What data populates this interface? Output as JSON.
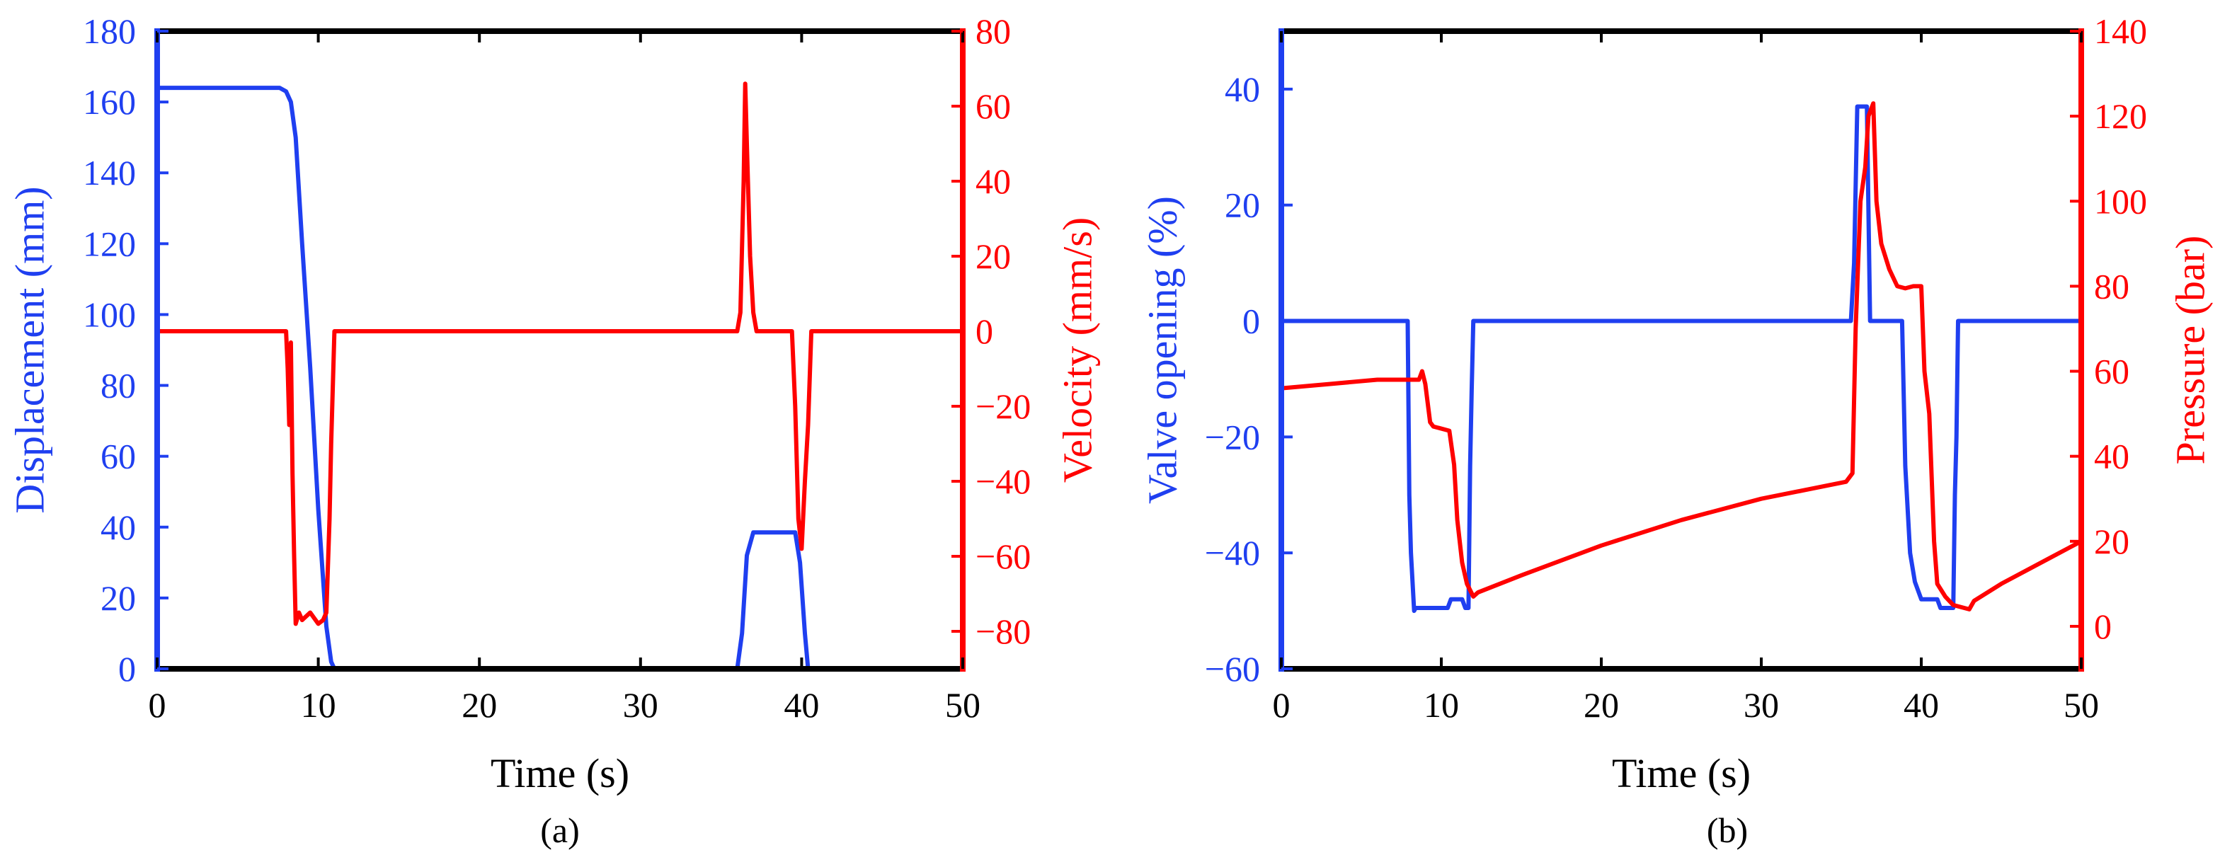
{
  "colors": {
    "left_axis": "#1f3ff0",
    "right_axis": "#ff0000",
    "frame": "#000000"
  },
  "chart_data": [
    {
      "type": "line",
      "panel": "a",
      "caption": "(a)",
      "xlabel": "Time (s)",
      "xlim": [
        0,
        50
      ],
      "xticks": [
        "0",
        "10",
        "20",
        "30",
        "40",
        "50"
      ],
      "left_axis": {
        "label": "Displacement (mm)",
        "ylim": [
          0,
          180
        ],
        "ticks": [
          "0",
          "20",
          "40",
          "60",
          "80",
          "100",
          "120",
          "140",
          "160",
          "180"
        ]
      },
      "right_axis": {
        "label": "Velocity (mm/s)",
        "ylim": [
          -90,
          80
        ],
        "ticks": [
          "−80",
          "−60",
          "−40",
          "−20",
          "0",
          "20",
          "40",
          "60",
          "80"
        ]
      },
      "series": [
        {
          "name": "Displacement",
          "axis": "left",
          "color": "#1f3ff0",
          "x": [
            0,
            7.6,
            8.0,
            8.3,
            8.6,
            9.0,
            9.5,
            10.0,
            10.5,
            10.8,
            11.0,
            36.0,
            36.3,
            36.6,
            37.0,
            39.6,
            39.9,
            40.2,
            40.4,
            50
          ],
          "y": [
            164,
            164,
            163,
            160,
            150,
            120,
            85,
            45,
            12,
            2,
            0,
            0,
            10,
            32,
            38.5,
            38.5,
            30,
            10,
            0,
            0
          ]
        },
        {
          "name": "Velocity",
          "axis": "right",
          "color": "#ff0000",
          "x": [
            0,
            8.0,
            8.1,
            8.2,
            8.3,
            8.4,
            8.5,
            8.6,
            8.8,
            9.0,
            9.5,
            10.0,
            10.3,
            10.5,
            10.7,
            10.8,
            10.9,
            11.0,
            36.0,
            36.2,
            36.4,
            36.5,
            36.6,
            36.8,
            37.0,
            37.2,
            39.4,
            39.6,
            39.8,
            40.0,
            40.2,
            40.4,
            40.6,
            50
          ],
          "y": [
            0,
            0,
            -10,
            -25,
            -3,
            -38,
            -60,
            -78,
            -75,
            -77,
            -75,
            -78,
            -77,
            -75,
            -50,
            -30,
            -15,
            0,
            0,
            5,
            40,
            66,
            50,
            20,
            5,
            0,
            0,
            -20,
            -50,
            -58,
            -40,
            -25,
            0,
            0
          ]
        }
      ]
    },
    {
      "type": "line",
      "panel": "b",
      "caption": "(b)",
      "xlabel": "Time (s)",
      "xlim": [
        0,
        50
      ],
      "xticks": [
        "0",
        "10",
        "20",
        "30",
        "40",
        "50"
      ],
      "left_axis": {
        "label": "Valve opening (%)",
        "ylim": [
          -60,
          50
        ],
        "ticks": [
          "−60",
          "−40",
          "−20",
          "0",
          "20",
          "40"
        ]
      },
      "right_axis": {
        "label": "Pressure (bar)",
        "ylim": [
          -10,
          140
        ],
        "ticks": [
          "0",
          "20",
          "40",
          "60",
          "80",
          "100",
          "120",
          "140"
        ]
      },
      "series": [
        {
          "name": "Valve opening",
          "axis": "left",
          "color": "#1f3ff0",
          "x": [
            0,
            7.9,
            8.0,
            8.1,
            8.3,
            8.4,
            10.4,
            10.6,
            11.3,
            11.5,
            11.7,
            11.8,
            11.9,
            12.0,
            35.6,
            35.8,
            36.0,
            36.6,
            36.8,
            38.8,
            39.0,
            39.3,
            39.6,
            40.0,
            41.0,
            41.2,
            42.0,
            42.1,
            42.2,
            42.3,
            50
          ],
          "y": [
            0,
            0,
            -30,
            -40,
            -50,
            -49.5,
            -49.5,
            -48,
            -48,
            -49.5,
            -49.5,
            -25,
            -12,
            0,
            0,
            10,
            37,
            37,
            0,
            0,
            -25,
            -40,
            -45,
            -48,
            -48,
            -49.5,
            -49.5,
            -30,
            -20,
            0,
            0
          ]
        },
        {
          "name": "Pressure",
          "axis": "right",
          "color": "#ff0000",
          "x": [
            0,
            3,
            6,
            8.6,
            8.8,
            9.0,
            9.3,
            9.5,
            10.5,
            10.8,
            11.0,
            11.3,
            11.6,
            12.0,
            12.3,
            15,
            20,
            25,
            30,
            35.3,
            35.7,
            35.9,
            36.2,
            36.5,
            36.7,
            37.0,
            37.2,
            37.5,
            38.0,
            38.5,
            39.0,
            39.5,
            40.0,
            40.2,
            40.5,
            40.8,
            41.0,
            41.5,
            42.0,
            43.0,
            43.3,
            45,
            48,
            50
          ],
          "y": [
            56,
            57,
            58,
            58,
            60,
            57,
            48,
            47,
            46,
            38,
            25,
            15,
            10,
            7,
            8,
            12,
            19,
            25,
            30,
            34,
            36,
            70,
            100,
            108,
            120,
            123,
            100,
            90,
            84,
            80,
            79.5,
            80,
            80,
            60,
            50,
            20,
            10,
            7,
            5,
            4,
            6,
            10,
            16,
            20
          ]
        }
      ]
    }
  ]
}
